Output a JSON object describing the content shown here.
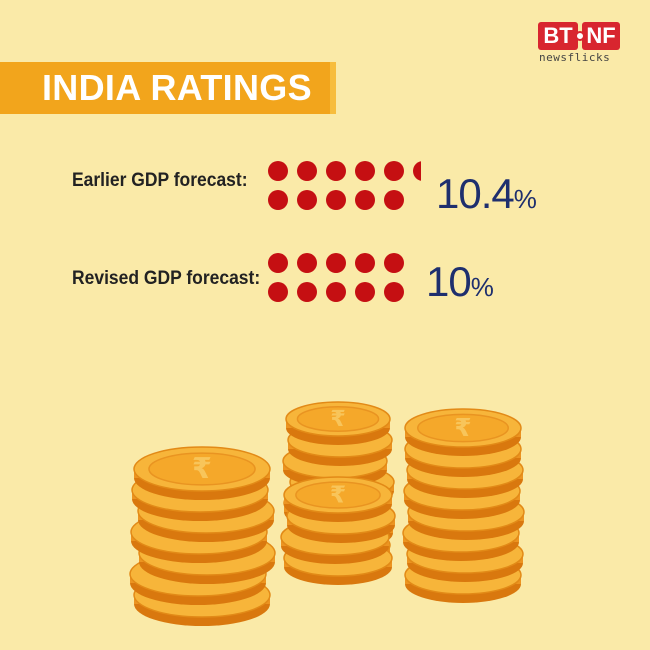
{
  "brand": {
    "left": "BT",
    "right": "NF",
    "subtitle": "newsflicks"
  },
  "title": "INDIA RATINGS",
  "rows": [
    {
      "label": "Earlier GDP forecast:",
      "value": "10.4",
      "unit": "%",
      "dot_fill": 10.4
    },
    {
      "label": "Revised GDP forecast:",
      "value": "10",
      "unit": "%",
      "dot_fill": 10
    }
  ],
  "colors": {
    "background": "#faeaa8",
    "banner": "#f2a51c",
    "dot": "#c50f12",
    "value_text": "#1e2f6e",
    "brand_red": "#d8262f",
    "coin_gold": "#f5a82a"
  },
  "illustration": {
    "icon": "rupee-coin-stacks-icon",
    "symbol": "₹"
  }
}
